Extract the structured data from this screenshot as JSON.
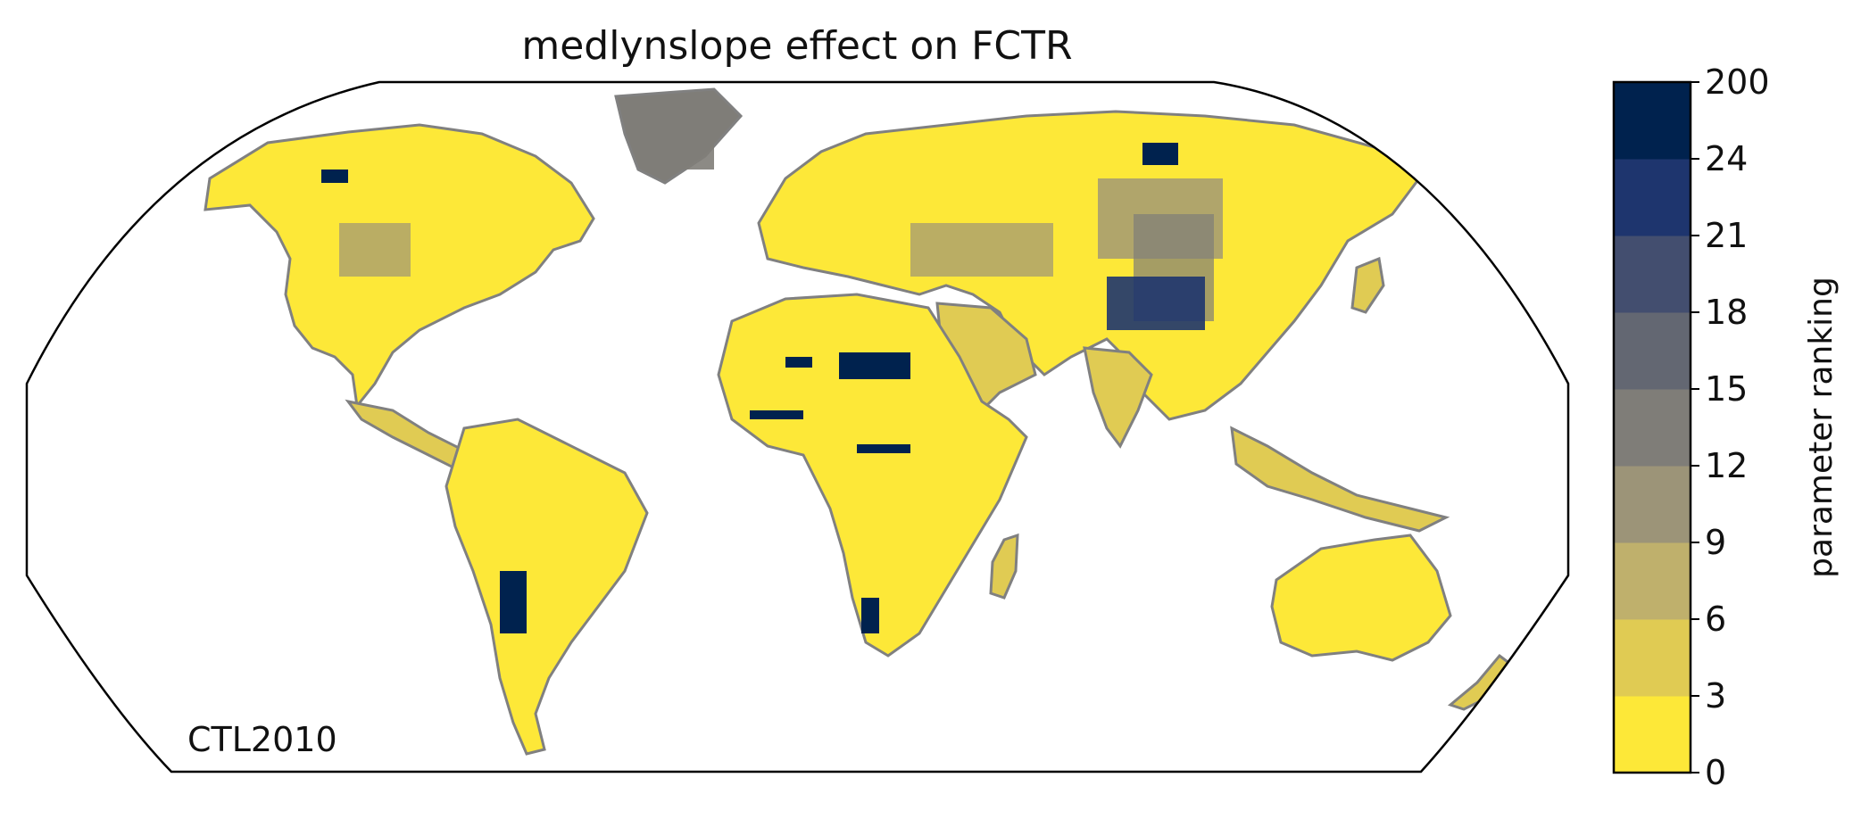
{
  "title": "medlynslope effect on FCTR",
  "annotation": "CTL2010",
  "colorbar": {
    "label": "parameter ranking",
    "ticks": [
      "0",
      "3",
      "6",
      "9",
      "12",
      "15",
      "18",
      "21",
      "24",
      "200"
    ],
    "colors": [
      "#fde838",
      "#e0cb53",
      "#bfb06c",
      "#9c9478",
      "#7f7d78",
      "#636772",
      "#434e6f",
      "#1e356e",
      "#00224e"
    ]
  },
  "map": {
    "projection": "Robinson",
    "coastline_color": "#808080",
    "ocean_color": "#ffffff"
  }
}
